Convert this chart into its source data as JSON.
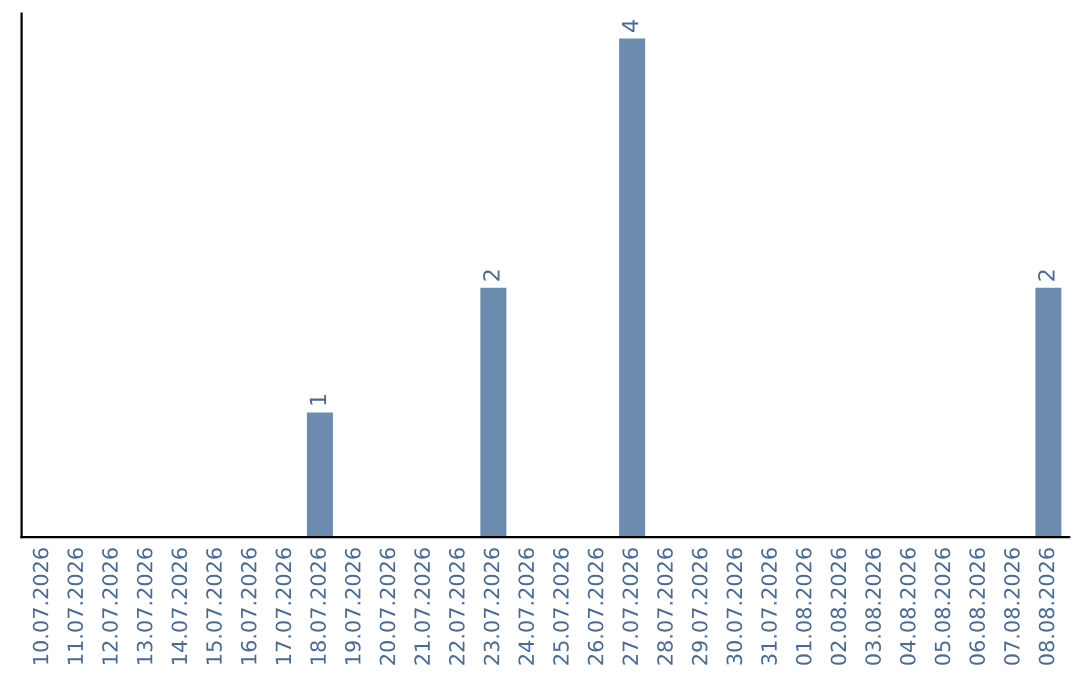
{
  "chart_data": {
    "type": "bar",
    "categories": [
      "10.07.2026",
      "11.07.2026",
      "12.07.2026",
      "13.07.2026",
      "14.07.2026",
      "15.07.2026",
      "16.07.2026",
      "17.07.2026",
      "18.07.2026",
      "19.07.2026",
      "20.07.2026",
      "21.07.2026",
      "22.07.2026",
      "23.07.2026",
      "24.07.2026",
      "25.07.2026",
      "26.07.2026",
      "27.07.2026",
      "28.07.2026",
      "29.07.2026",
      "30.07.2026",
      "31.07.2026",
      "01.08.2026",
      "02.08.2026",
      "03.08.2026",
      "04.08.2026",
      "05.08.2026",
      "06.08.2026",
      "07.08.2026",
      "08.08.2026"
    ],
    "values": [
      0,
      0,
      0,
      0,
      0,
      0,
      0,
      0,
      1,
      0,
      0,
      0,
      0,
      2,
      0,
      0,
      0,
      4,
      0,
      0,
      0,
      0,
      0,
      0,
      0,
      0,
      0,
      0,
      0,
      2
    ],
    "value_labels": [
      null,
      null,
      null,
      null,
      null,
      null,
      null,
      null,
      "1",
      null,
      null,
      null,
      null,
      "2",
      null,
      null,
      null,
      "4",
      null,
      null,
      null,
      null,
      null,
      null,
      null,
      null,
      null,
      null,
      null,
      "2"
    ],
    "color": "#6b8cae",
    "tick_labels": "x",
    "grid": false,
    "legend": false
  }
}
